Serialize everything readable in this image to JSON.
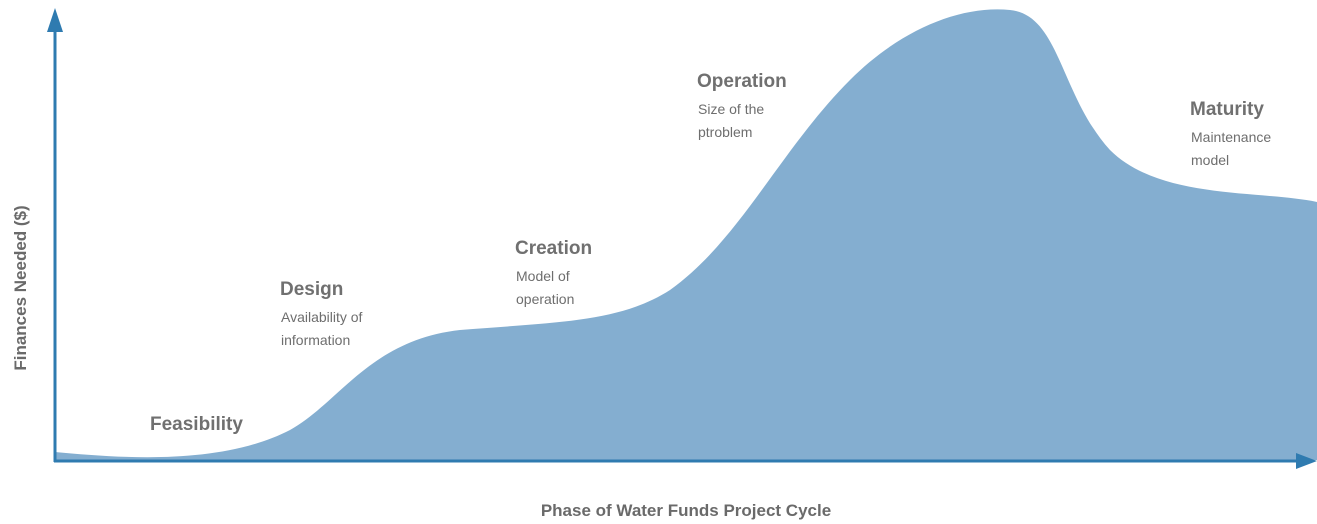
{
  "y_axis_label": "Finances Needed ($)",
  "x_axis_label": "Phase of Water Funds Project Cycle",
  "phases": [
    {
      "title": "Feasibility"
    },
    {
      "title": "Design",
      "description": [
        "Availability of",
        "information"
      ]
    },
    {
      "title": "Creation",
      "description": [
        "Model of",
        "operation"
      ]
    },
    {
      "title": "Operation",
      "description": [
        "Size of the",
        "ptroblem"
      ]
    },
    {
      "title": "Maturity",
      "description": [
        "Maintenance",
        "model"
      ]
    }
  ]
}
